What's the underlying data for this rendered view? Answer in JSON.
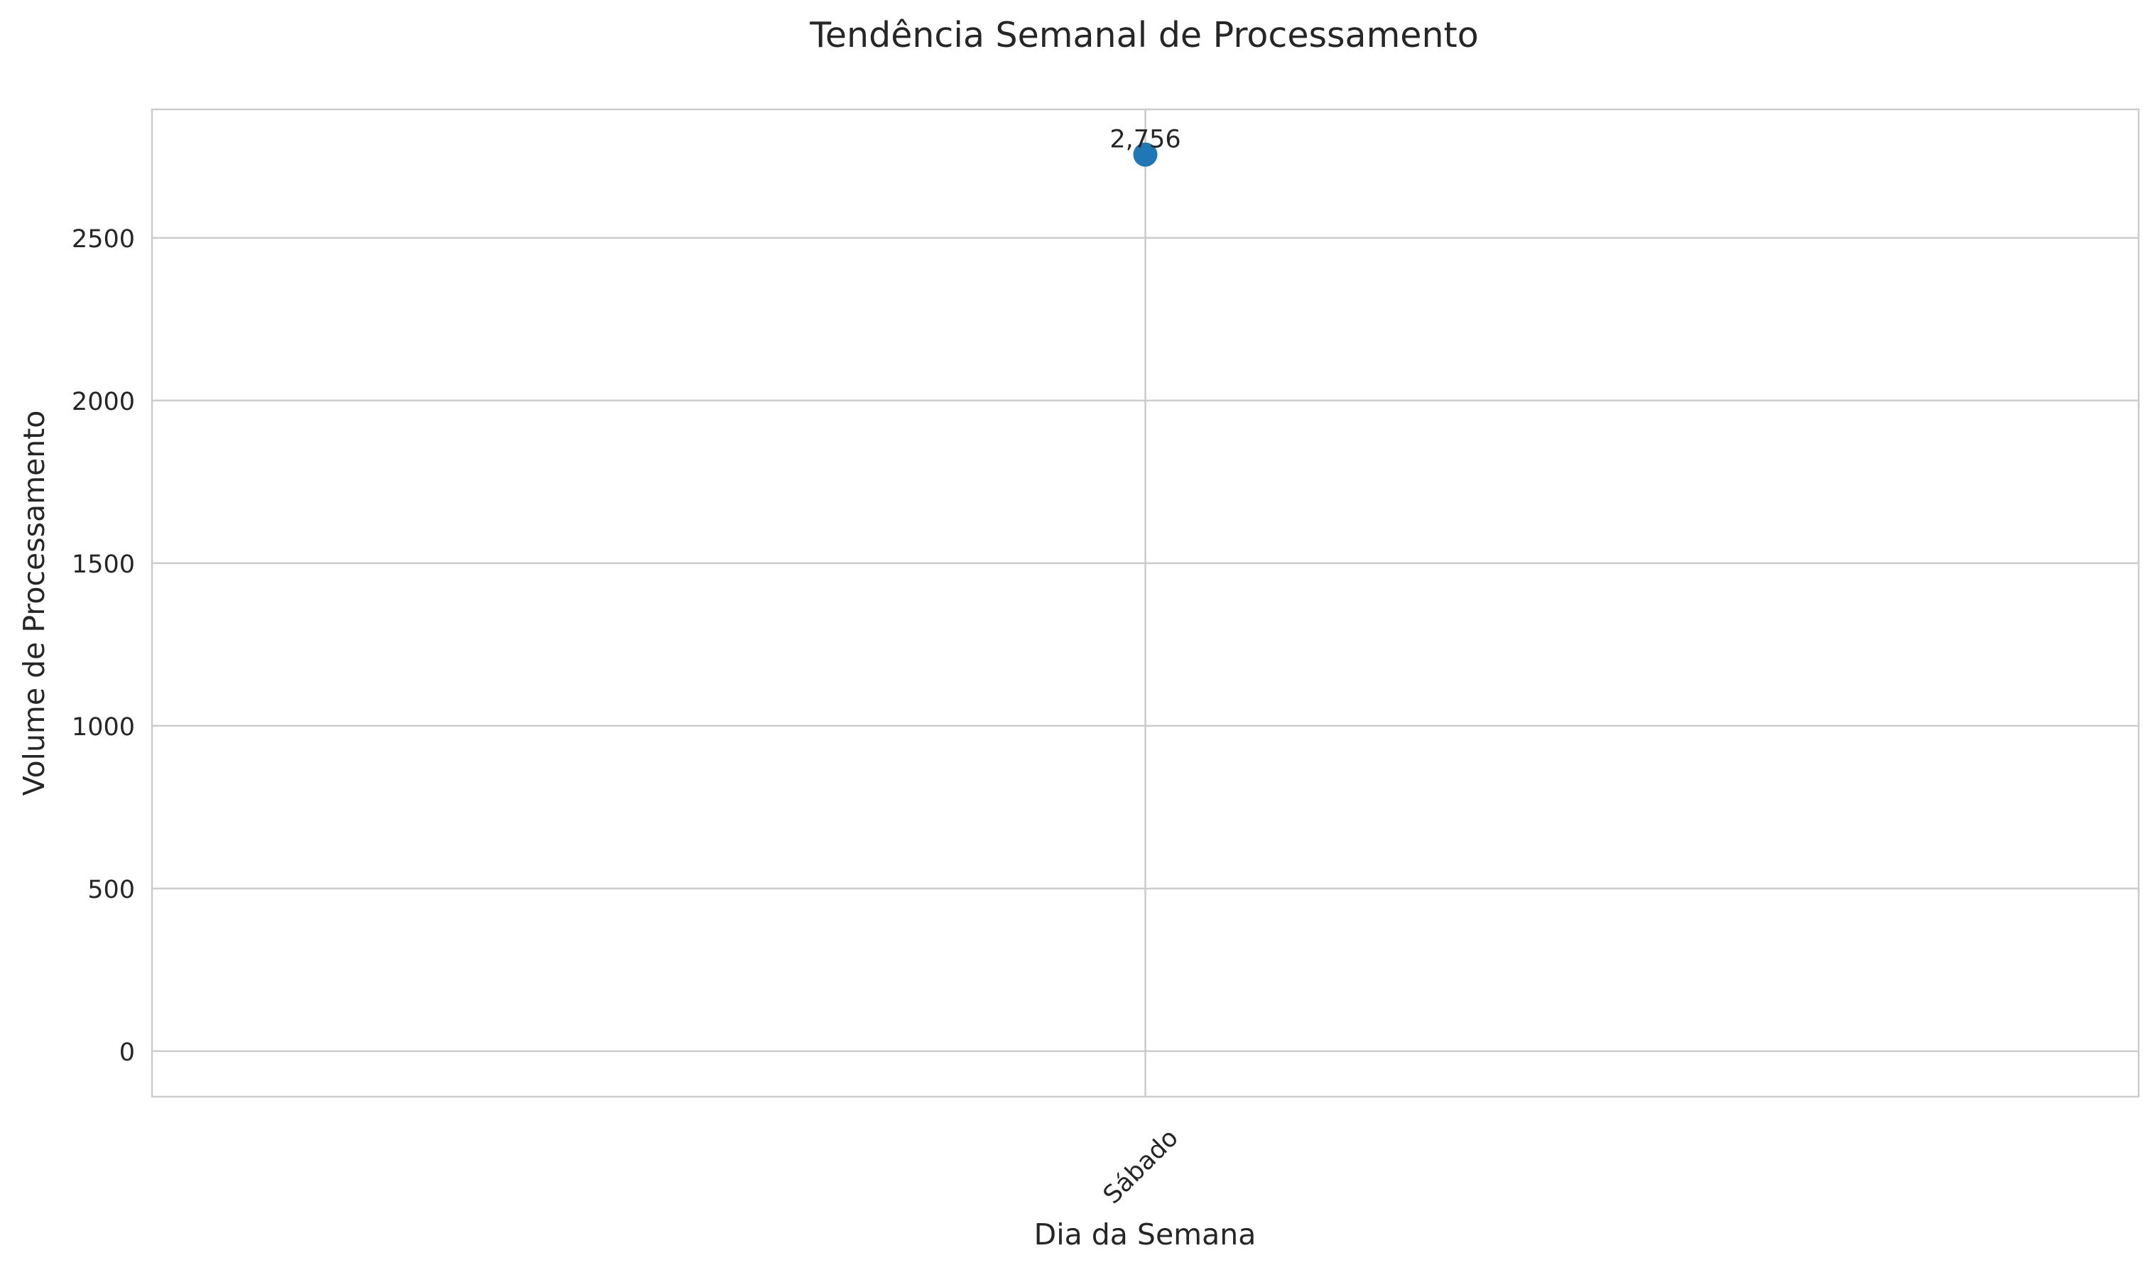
{
  "chart_data": {
    "type": "line",
    "title": "Tendência Semanal de Processamento",
    "xlabel": "Dia da Semana",
    "ylabel": "Volume de Processamento",
    "categories": [
      "Sábado"
    ],
    "series": [
      {
        "values": [
          2756
        ],
        "data_labels": [
          "2,756"
        ],
        "color": "#1f77b4"
      }
    ],
    "yticks": [
      0,
      500,
      1000,
      1500,
      2000,
      2500
    ],
    "ytick_labels": [
      "0",
      "500",
      "1000",
      "1500",
      "2000",
      "2500"
    ],
    "ylim": [
      -140,
      2895
    ],
    "grid": true,
    "legend": "none"
  }
}
